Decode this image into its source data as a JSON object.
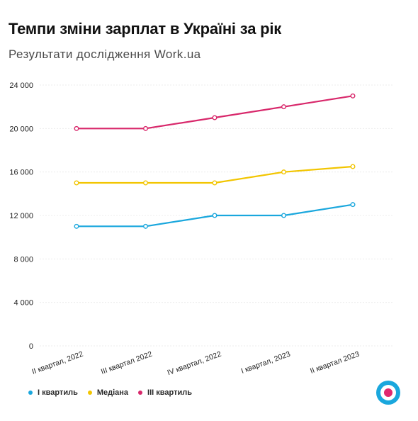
{
  "header": {
    "title": "Темпи зміни зарплат в Україні за рік",
    "subtitle": "Результати дослідження Work.ua"
  },
  "chart_data": {
    "type": "line",
    "title": "Темпи зміни зарплат в Україні за рік",
    "subtitle": "Результати дослідження Work.ua",
    "categories": [
      "II квартал, 2022",
      "III квартал 2022",
      "IV квартал, 2022",
      "I квартал, 2023",
      "II квартал 2023"
    ],
    "y_ticks": [
      "0",
      "4 000",
      "8 000",
      "12 000",
      "16 000",
      "20 000",
      "24 000"
    ],
    "y_tick_values": [
      0,
      4000,
      8000,
      12000,
      16000,
      20000,
      24000
    ],
    "ylim": [
      0,
      24000
    ],
    "xlabel": "",
    "ylabel": "",
    "grid": true,
    "legend_position": "bottom-left",
    "series": [
      {
        "name": "I квартиль",
        "color": "#1aa7dd",
        "values": [
          11000,
          11000,
          12000,
          12000,
          13000
        ]
      },
      {
        "name": "Медіана",
        "color": "#f2c500",
        "values": [
          15000,
          15000,
          15000,
          16000,
          16500
        ]
      },
      {
        "name": "III квартиль",
        "color": "#d8286b",
        "values": [
          20000,
          20000,
          21000,
          22000,
          23000
        ]
      }
    ]
  },
  "logo": {
    "icon": "work-ua-target-icon",
    "outer_color": "#1aa7dd",
    "ring_color": "#ffffff",
    "center_color": "#e0286e"
  }
}
